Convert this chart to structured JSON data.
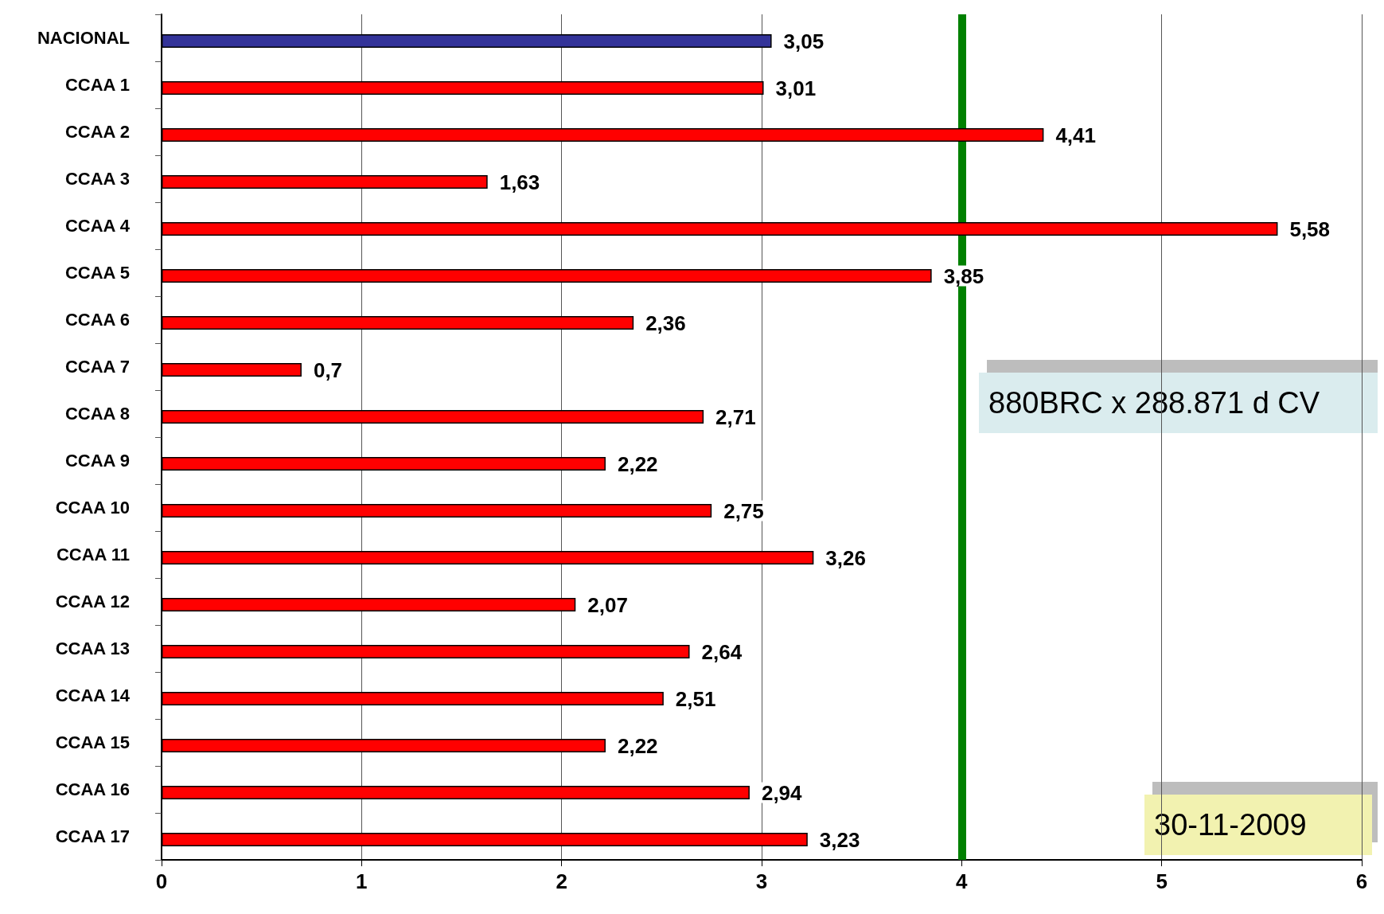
{
  "chart_data": {
    "type": "bar",
    "orientation": "horizontal",
    "categories": [
      "NACIONAL",
      "CCAA 1",
      "CCAA 2",
      "CCAA 3",
      "CCAA 4",
      "CCAA 5",
      "CCAA 6",
      "CCAA 7",
      "CCAA 8",
      "CCAA 9",
      "CCAA 10",
      "CCAA 11",
      "CCAA 12",
      "CCAA 13",
      "CCAA 14",
      "CCAA 15",
      "CCAA 16",
      "CCAA 17"
    ],
    "values": [
      3.05,
      3.01,
      4.41,
      1.63,
      5.58,
      3.85,
      2.36,
      0.7,
      2.71,
      2.22,
      2.75,
      3.26,
      2.07,
      2.64,
      2.51,
      2.22,
      2.94,
      3.23
    ],
    "value_labels": [
      "3,05",
      "3,01",
      "4,41",
      "1,63",
      "5,58",
      "3,85",
      "2,36",
      "0,7",
      "2,71",
      "2,22",
      "2,75",
      "3,26",
      "2,07",
      "2,64",
      "2,51",
      "2,22",
      "2,94",
      "3,23"
    ],
    "colors": [
      "#333399",
      "#ff0000",
      "#ff0000",
      "#ff0000",
      "#ff0000",
      "#ff0000",
      "#ff0000",
      "#ff0000",
      "#ff0000",
      "#ff0000",
      "#ff0000",
      "#ff0000",
      "#ff0000",
      "#ff0000",
      "#ff0000",
      "#ff0000",
      "#ff0000",
      "#ff0000"
    ],
    "xlim": [
      0,
      6
    ],
    "xticks": [
      0,
      1,
      2,
      3,
      4,
      5,
      6
    ],
    "grid": "x",
    "ref_lines": [
      {
        "axis": "x",
        "value": 4,
        "color": "#008000"
      }
    ],
    "annotations": [
      "880BRC x 288.871 d CV",
      "30-11-2009"
    ]
  }
}
